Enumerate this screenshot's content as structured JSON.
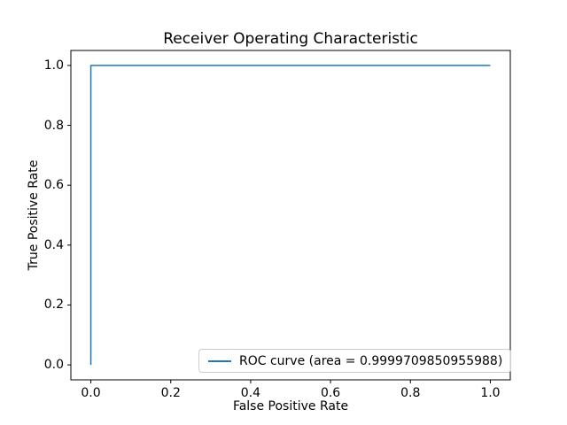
{
  "figure": {
    "background": "#ffffff",
    "frame_color": "#000000",
    "text_color": "#000000"
  },
  "chart_data": {
    "type": "line",
    "title": "Receiver Operating Characteristic",
    "xlabel": "False Positive Rate",
    "ylabel": "True Positive Rate",
    "xlim": [
      -0.05,
      1.05
    ],
    "ylim": [
      -0.05,
      1.05
    ],
    "xticks": [
      0.0,
      0.2,
      0.4,
      0.6,
      0.8,
      1.0
    ],
    "yticks": [
      0.0,
      0.2,
      0.4,
      0.6,
      0.8,
      1.0
    ],
    "xtick_labels": [
      "0.0",
      "0.2",
      "0.4",
      "0.6",
      "0.8",
      "1.0"
    ],
    "ytick_labels": [
      "0.0",
      "0.2",
      "0.4",
      "0.6",
      "0.8",
      "1.0"
    ],
    "grid": false,
    "legend": {
      "position": "lower right",
      "entries": [
        {
          "label": "ROC curve (area = 0.9999709850955988)",
          "color": "#1f77b4"
        }
      ]
    },
    "series": [
      {
        "name": "ROC curve (area = 0.9999709850955988)",
        "color": "#1f77b4",
        "line_width": 1.5,
        "x": [
          0.0,
          0.0,
          1.0
        ],
        "y": [
          0.0,
          1.0,
          1.0
        ]
      }
    ]
  }
}
